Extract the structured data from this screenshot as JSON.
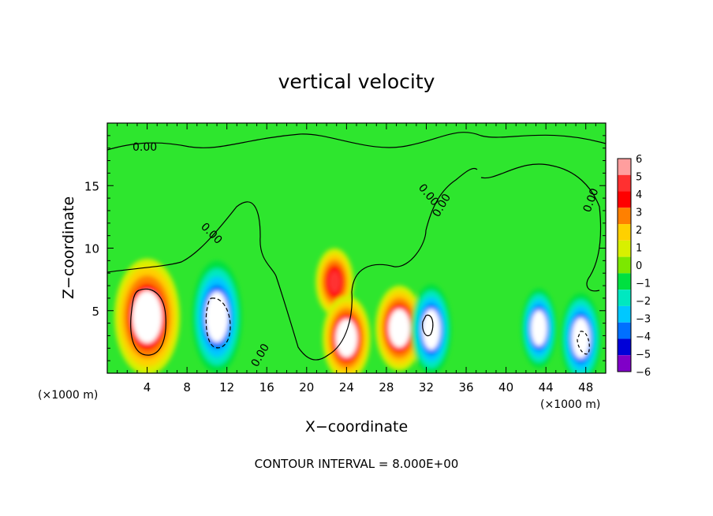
{
  "chart_data": {
    "type": "heatmap",
    "title": "vertical velocity",
    "xlabel": "X−coordinate",
    "ylabel": "Z−coordinate",
    "x_unit": "(×1000 m)",
    "y_unit": "(×1000 m)",
    "xlim": [
      0,
      50
    ],
    "ylim": [
      0,
      20
    ],
    "x_ticks": [
      4,
      8,
      12,
      16,
      20,
      24,
      28,
      32,
      36,
      40,
      44,
      48
    ],
    "x_tick_labels": [
      "4",
      "8",
      "12",
      "16",
      "20",
      "24",
      "28",
      "32",
      "36",
      "40",
      "44",
      "48"
    ],
    "y_ticks": [
      5,
      10,
      15
    ],
    "y_tick_labels": [
      "5",
      "10",
      "15"
    ],
    "colorbar": {
      "levels": [
        6,
        5,
        4,
        3,
        2,
        1,
        0,
        -1,
        -2,
        -3,
        -4,
        -5,
        -6
      ],
      "labels": [
        "6",
        "5",
        "4",
        "3",
        "2",
        "1",
        "0",
        "−1",
        "−2",
        "−3",
        "−4",
        "−5",
        "−6"
      ],
      "colors": [
        "#ff9e9e",
        "#ff3030",
        "#ff0000",
        "#ff8000",
        "#ffd000",
        "#d8f000",
        "#7ce800",
        "#00e040",
        "#00e8c0",
        "#00c8ff",
        "#0070ff",
        "#0000d8",
        "#8000c8"
      ]
    },
    "background_color": "#2ee62e",
    "features": [
      {
        "type": "updraft",
        "x": 4.0,
        "z": 4.5,
        "peak": 15
      },
      {
        "type": "downdraft",
        "x": 11.0,
        "z": 4.5,
        "peak": -14
      },
      {
        "type": "updraft",
        "x": 22.8,
        "z": 7.3,
        "peak": 5
      },
      {
        "type": "updraft",
        "x": 24.0,
        "z": 2.8,
        "peak": 8
      },
      {
        "type": "updraft",
        "x": 29.3,
        "z": 3.6,
        "peak": 8
      },
      {
        "type": "downdraft",
        "x": 32.5,
        "z": 3.5,
        "peak": -9
      },
      {
        "type": "downdraft",
        "x": 43.3,
        "z": 3.6,
        "peak": -7
      },
      {
        "type": "downdraft",
        "x": 47.5,
        "z": 2.8,
        "peak": -9
      }
    ],
    "contour_labels": [
      "0.00",
      "0.00",
      "0.00",
      "0.00",
      "0.00",
      "0.00"
    ],
    "footer": "CONTOUR INTERVAL = 8.000E+00"
  }
}
